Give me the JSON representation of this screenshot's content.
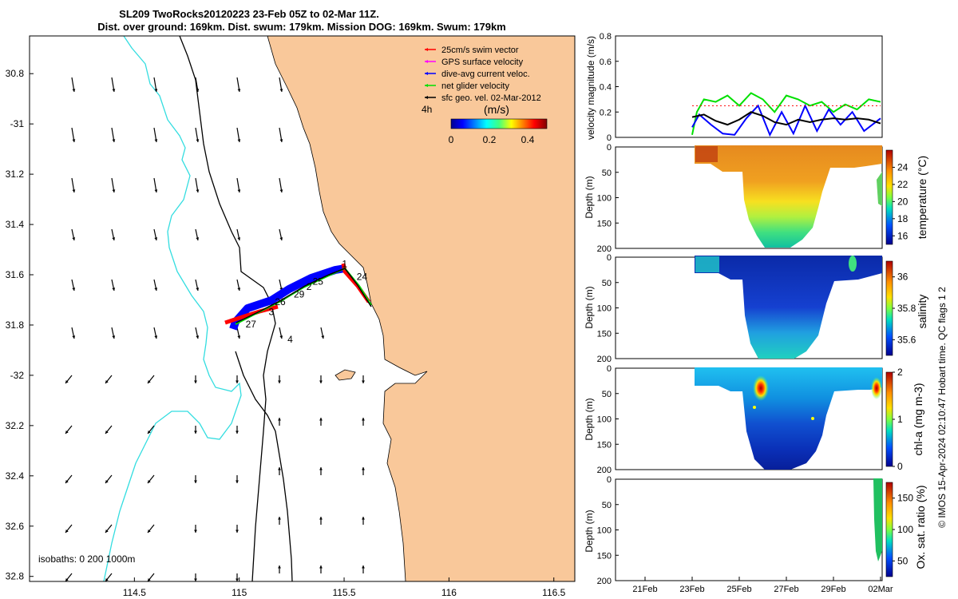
{
  "title": {
    "line1": "SL209 TwoRocks20120223 23-Feb 05Z to 02-Mar 11Z.",
    "line2": "Dist. over ground: 169km. Dist. swum: 179km. Mission DOG: 169km. Swum: 179km"
  },
  "colors": {
    "land": "#f9c89a",
    "ocean": "#ffffff",
    "isobath": "#000000",
    "isobath_200": "#33dde0",
    "deep_blue": "#00008f",
    "swim": "#ff0000",
    "gps": "#ff00ff",
    "dive": "#0000ff",
    "net": "#00e000",
    "sfc": "#000000"
  },
  "chart_data": [
    {
      "type": "scatter",
      "name": "map",
      "xticks": [
        114.5,
        115,
        115.5,
        116,
        116.5
      ],
      "xtick_labels": [
        "114.5",
        "115",
        "115.5",
        "116",
        "116.5"
      ],
      "yticks": [
        30.8,
        31,
        31.2,
        31.4,
        31.6,
        31.8,
        32,
        32.2,
        32.4,
        32.6,
        32.8
      ],
      "ytick_labels": [
        "30.8",
        "-31",
        "31.2",
        "31.4",
        "31.6",
        "31.8",
        "-32",
        "32.2",
        "32.4",
        "32.6",
        "32.8"
      ],
      "xlim": [
        114.0,
        116.6
      ],
      "ylim_south": [
        30.65,
        32.82
      ],
      "legend": [
        {
          "label": "25cm/s swim vector",
          "color": "#ff0000"
        },
        {
          "label": "GPS surface velocity",
          "color": "#ff00ff"
        },
        {
          "label": "dive-avg current veloc.",
          "color": "#0000ff"
        },
        {
          "label": "net glider velocity",
          "color": "#00e000"
        },
        {
          "label": "sfc geo. vel. 02-Mar-2012",
          "color": "#000000"
        }
      ],
      "legend_position": "top-right",
      "arrow_scale_label": "4h",
      "colorbar": {
        "title": "(m/s)",
        "ticks": [
          "0",
          "0.2",
          "0.4"
        ],
        "range": [
          0,
          0.5
        ]
      },
      "isobaths_label": "isobaths: 0   200  1000m",
      "track_south": [
        {
          "lon": 114.97,
          "lat": 31.82
        },
        {
          "lon": 115.02,
          "lat": 31.77
        },
        {
          "lon": 115.12,
          "lat": 31.74
        },
        {
          "lon": 115.22,
          "lat": 31.7
        },
        {
          "lon": 115.32,
          "lat": 31.65
        },
        {
          "lon": 115.4,
          "lat": 31.6
        },
        {
          "lon": 115.48,
          "lat": 31.56
        },
        {
          "lon": 115.62,
          "lat": 31.72
        }
      ],
      "day_labels": [
        {
          "text": "1",
          "lon": 115.49,
          "lat": 31.57
        },
        {
          "text": "24",
          "lon": 115.56,
          "lat": 31.62
        },
        {
          "text": "25",
          "lon": 115.35,
          "lat": 31.64
        },
        {
          "text": "2",
          "lon": 115.32,
          "lat": 31.66
        },
        {
          "text": "29",
          "lon": 115.26,
          "lat": 31.69
        },
        {
          "text": "26",
          "lon": 115.17,
          "lat": 31.72
        },
        {
          "text": "3",
          "lon": 115.14,
          "lat": 31.76
        },
        {
          "text": "27",
          "lon": 115.03,
          "lat": 31.81
        },
        {
          "text": "4",
          "lon": 115.23,
          "lat": 31.87
        }
      ]
    },
    {
      "type": "line",
      "name": "velocity",
      "ylabel": "velocity magnitude (m/s)",
      "yticks": [
        0,
        0.2,
        0.4,
        0.6,
        0.8
      ],
      "ylim": [
        0,
        0.8
      ],
      "series": [
        {
          "name": "net glider velocity",
          "color": "#00e000",
          "x": [
            0,
            0.2,
            0.5,
            1,
            1.5,
            2,
            2.5,
            3,
            3.5,
            4,
            4.5,
            5,
            5.5,
            6,
            6.5,
            7,
            7.5,
            8
          ],
          "values": [
            0.02,
            0.2,
            0.3,
            0.28,
            0.33,
            0.25,
            0.35,
            0.3,
            0.2,
            0.33,
            0.3,
            0.25,
            0.28,
            0.2,
            0.26,
            0.22,
            0.3,
            0.28
          ]
        },
        {
          "name": "dive-avg current veloc.",
          "color": "#0000ff",
          "x": [
            0,
            0.3,
            0.8,
            1.3,
            1.8,
            2.3,
            2.8,
            3.3,
            3.8,
            4.3,
            4.8,
            5.3,
            5.8,
            6.3,
            6.8,
            7.3,
            8
          ],
          "values": [
            0.08,
            0.18,
            0.1,
            0.03,
            0.02,
            0.15,
            0.25,
            0.02,
            0.2,
            0.03,
            0.25,
            0.05,
            0.22,
            0.1,
            0.2,
            0.05,
            0.15
          ]
        },
        {
          "name": "sfc geo. vel.",
          "color": "#000000",
          "x": [
            0,
            0.5,
            1,
            1.5,
            2,
            2.5,
            3,
            3.5,
            4,
            4.5,
            5,
            5.5,
            6,
            6.5,
            7,
            7.5,
            8
          ],
          "values": [
            0.16,
            0.18,
            0.13,
            0.1,
            0.14,
            0.2,
            0.17,
            0.12,
            0.1,
            0.14,
            0.12,
            0.14,
            0.15,
            0.14,
            0.15,
            0.14,
            0.11
          ]
        },
        {
          "name": "25cm/s swim vector",
          "color": "#ff0000",
          "x": [
            0,
            1,
            2,
            3,
            4,
            5,
            6,
            7,
            8
          ],
          "values": [
            0.25,
            0.25,
            0.25,
            0.25,
            0.25,
            0.25,
            0.25,
            0.25,
            0.25
          ]
        }
      ]
    },
    {
      "type": "heatmap",
      "name": "temperature",
      "ylabel": "Depth (m)",
      "cblabel": "temperature (°C)",
      "cbticks": [
        "24",
        "22",
        "20",
        "18",
        "16"
      ],
      "cbrange": [
        15,
        26
      ],
      "yticks": [
        0,
        50,
        100,
        150,
        200
      ]
    },
    {
      "type": "heatmap",
      "name": "salinity",
      "ylabel": "Depth (m)",
      "cblabel": "salinity",
      "cbticks": [
        "36",
        "35.8",
        "35.6"
      ],
      "cbrange": [
        35.5,
        36.1
      ],
      "yticks": [
        0,
        50,
        100,
        150,
        200
      ]
    },
    {
      "type": "heatmap",
      "name": "chla",
      "ylabel": "Depth (m)",
      "cblabel": "chl-a (mg m-3)",
      "cbticks": [
        "2",
        "1",
        "0"
      ],
      "cbrange": [
        0,
        2
      ],
      "yticks": [
        0,
        50,
        100,
        150,
        200
      ]
    },
    {
      "type": "heatmap",
      "name": "oxygen",
      "ylabel": "Depth (m)",
      "cblabel": "Ox. sat. ratio (%)",
      "cbticks": [
        "150",
        "100",
        "50"
      ],
      "cbrange": [
        25,
        175
      ],
      "yticks": [
        0,
        50,
        100,
        150,
        200
      ],
      "xtick_labels": [
        "21Feb",
        "23Feb",
        "25Feb",
        "27Feb",
        "29Feb",
        "02Mar"
      ]
    }
  ],
  "side_note": "© IMOS 15-Apr-2024 02:10:47 Hobart time. QC flags 1  2"
}
